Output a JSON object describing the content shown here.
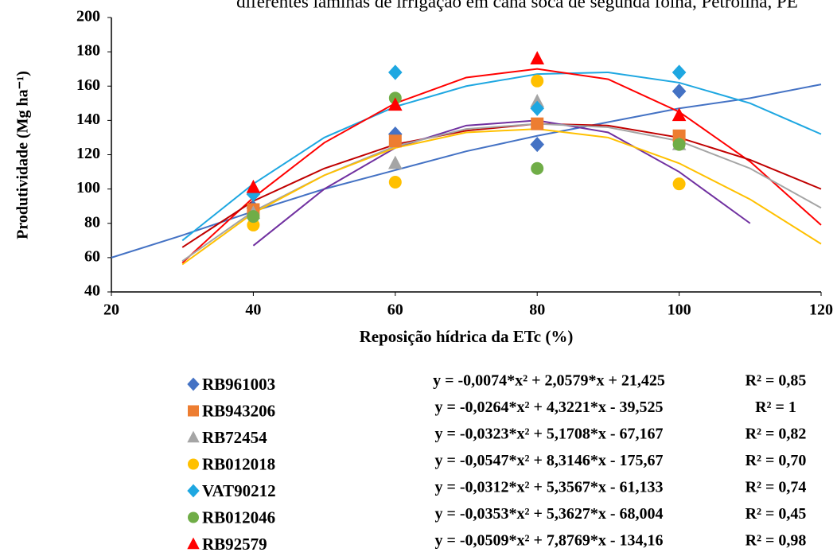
{
  "chart_data": {
    "type": "scatter",
    "title": "diferentes laminas de irrigação em cana soca de segunda folha, Petrolina, PE",
    "xlabel": "Reposição hídrica da ETc (%)",
    "ylabel": "Produtividade (Mg ha⁻¹)",
    "x": [
      40,
      60,
      80,
      100
    ],
    "xlim": [
      20,
      120
    ],
    "xticks": [
      20,
      40,
      60,
      80,
      100,
      120
    ],
    "ylim": [
      40,
      200
    ],
    "yticks": [
      40,
      60,
      80,
      100,
      120,
      140,
      160,
      180,
      200
    ],
    "grid": false,
    "series": [
      {
        "name": "RB961003",
        "color": "#4472c4",
        "marker": "diamond",
        "values": [
          89,
          132,
          126,
          157
        ],
        "equation": "y = -0,0074*x² + 2,0579*x + 21,425",
        "r2": "R² = 0,85"
      },
      {
        "name": "RB943206",
        "color": "#ed7d31",
        "marker": "square",
        "values": [
          88,
          128,
          138,
          131
        ],
        "equation": "y = -0,0264*x² + 4,3221*x - 39,525",
        "r2": "R² = 1"
      },
      {
        "name": "RB72454",
        "color": "#a5a5a5",
        "marker": "triangle",
        "values": [
          86,
          115,
          151,
          126
        ],
        "equation": "y = -0,0323*x² + 5,1708*x - 67,167",
        "r2": "R² = 0,82"
      },
      {
        "name": "RB012018",
        "color": "#ffc000",
        "marker": "circle",
        "values": [
          79,
          104,
          163,
          103
        ],
        "equation": "y = -0,0547*x² + 8,3146*x - 175,67",
        "r2": "R² = 0,70"
      },
      {
        "name": "VAT90212",
        "color": "#1ea7e1",
        "marker": "diamond",
        "values": [
          97,
          168,
          147,
          168
        ],
        "equation": "y = -0,0312*x² + 5,3567*x - 61,133",
        "r2": "R² = 0,74"
      },
      {
        "name": "RB012046",
        "color": "#70ad47",
        "marker": "circle",
        "values": [
          84,
          153,
          112,
          126
        ],
        "equation": "y = -0,0353*x² + 5,3627*x - 68,004",
        "r2": "R² = 0,45"
      },
      {
        "name": "RB92579",
        "color": "#ff0000",
        "marker": "triangle",
        "values": [
          101,
          149,
          176,
          143
        ],
        "equation": "y = -0,0509*x² + 7,8769*x - 134,16",
        "r2": "R² = 0,98"
      }
    ],
    "trend_x": [
      20,
      30,
      40,
      50,
      60,
      70,
      80,
      90,
      100,
      110,
      120
    ],
    "trendlines": [
      {
        "color": "#4472c4",
        "values": [
          60,
          73,
          87,
          100,
          111,
          122,
          131,
          139,
          147,
          153,
          161
        ]
      },
      {
        "color": "#1ea7e1",
        "values": [
          null,
          70,
          103,
          130,
          148,
          160,
          167,
          168,
          162,
          150,
          132
        ]
      },
      {
        "color": "#ff0000",
        "values": [
          null,
          57,
          95,
          127,
          150,
          165,
          170,
          164,
          145,
          116,
          79
        ]
      },
      {
        "color": "#c00000",
        "values": [
          null,
          66,
          93,
          112,
          126,
          134,
          138,
          137,
          130,
          117,
          100
        ]
      },
      {
        "color": "#7030a0",
        "values": [
          null,
          null,
          67,
          100,
          124,
          137,
          140,
          133,
          110,
          80,
          null
        ]
      },
      {
        "color": "#a5a5a5",
        "values": [
          null,
          58,
          87,
          108,
          125,
          135,
          138,
          136,
          128,
          112,
          89
        ]
      },
      {
        "color": "#ffc000",
        "values": [
          null,
          56,
          86,
          108,
          124,
          133,
          135,
          130,
          115,
          94,
          68
        ]
      }
    ]
  }
}
